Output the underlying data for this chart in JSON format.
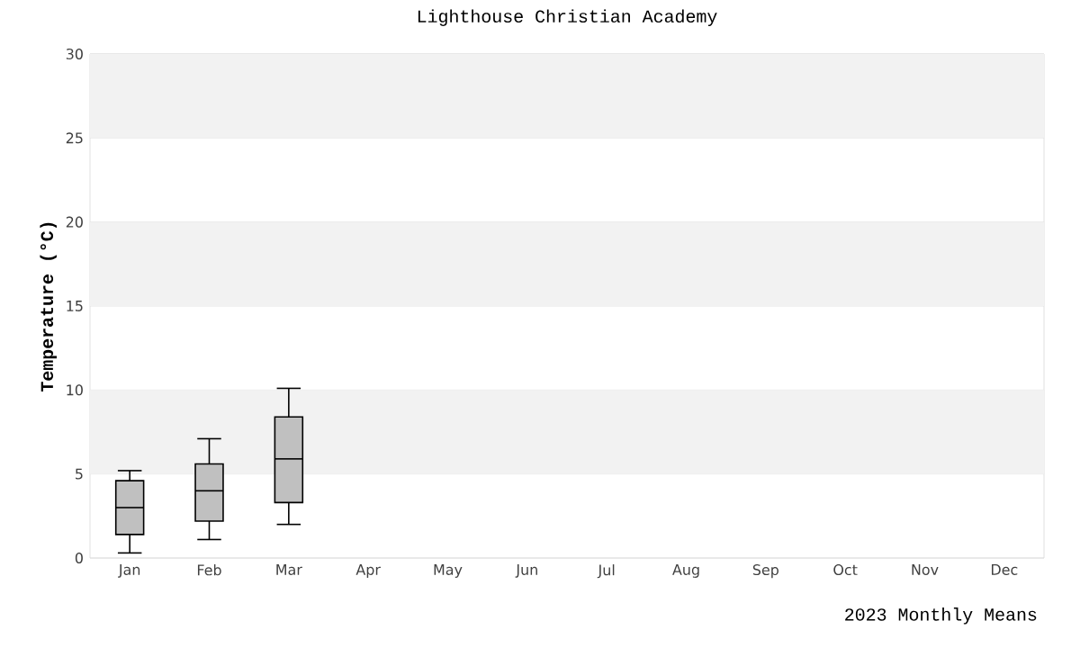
{
  "chart_data": {
    "type": "box",
    "title": "Lighthouse Christian Academy",
    "xlabel": "2023 Monthly Means",
    "ylabel": "Temperature (°C)",
    "categories": [
      "Jan",
      "Feb",
      "Mar",
      "Apr",
      "May",
      "Jun",
      "Jul",
      "Aug",
      "Sep",
      "Oct",
      "Nov",
      "Dec"
    ],
    "boxes": [
      {
        "low": 0.3,
        "q1": 1.4,
        "median": 3.0,
        "q3": 4.6,
        "high": 5.2
      },
      {
        "low": 1.1,
        "q1": 2.2,
        "median": 4.0,
        "q3": 5.6,
        "high": 7.1
      },
      {
        "low": 2.0,
        "q1": 3.3,
        "median": 5.9,
        "q3": 8.4,
        "high": 10.1
      },
      null,
      null,
      null,
      null,
      null,
      null,
      null,
      null,
      null
    ],
    "color": "#c0c0c0",
    "ylim": [
      0,
      30
    ],
    "yticks": [
      0,
      5,
      10,
      15,
      20,
      25,
      30
    ],
    "grid": "y"
  }
}
